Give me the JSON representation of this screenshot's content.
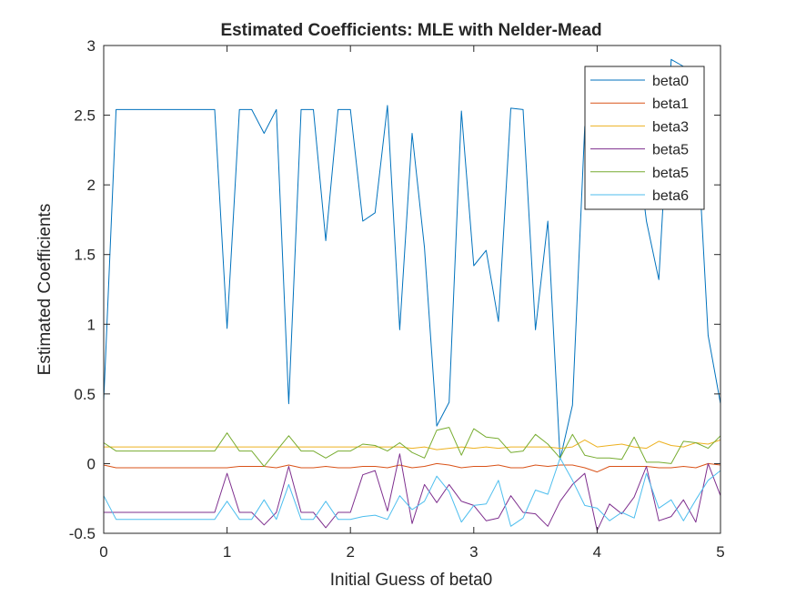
{
  "chart_data": {
    "type": "line",
    "title": "Estimated Coefficients: MLE with Nelder-Mead",
    "xlabel": "Initial Guess of beta0",
    "ylabel": "Estimated Coefficients",
    "xlim": [
      0,
      5
    ],
    "ylim": [
      -0.5,
      3
    ],
    "xticks": [
      0,
      1,
      2,
      3,
      4,
      5
    ],
    "xtick_labels": [
      "0",
      "1",
      "2",
      "3",
      "4",
      "5"
    ],
    "yticks": [
      -0.5,
      0,
      0.5,
      1,
      1.5,
      2,
      2.5,
      3
    ],
    "ytick_labels": [
      "-0.5",
      "0",
      "0.5",
      "1",
      "1.5",
      "2",
      "2.5",
      "3"
    ],
    "grid": false,
    "legend_position": "top-right",
    "x": [
      0,
      0.1,
      0.2,
      0.3,
      0.4,
      0.5,
      0.6,
      0.7,
      0.8,
      0.9,
      1.0,
      1.1,
      1.2,
      1.3,
      1.4,
      1.5,
      1.6,
      1.7,
      1.8,
      1.9,
      2.0,
      2.1,
      2.2,
      2.3,
      2.4,
      2.5,
      2.6,
      2.7,
      2.8,
      2.9,
      3.0,
      3.1,
      3.2,
      3.3,
      3.4,
      3.5,
      3.6,
      3.7,
      3.8,
      3.9,
      4.0,
      4.1,
      4.2,
      4.3,
      4.4,
      4.5,
      4.6,
      4.7,
      4.8,
      4.9,
      5.0
    ],
    "series": [
      {
        "name": "beta0",
        "color": "#0072BD",
        "values": [
          0.45,
          2.54,
          2.54,
          2.54,
          2.54,
          2.54,
          2.54,
          2.54,
          2.54,
          2.54,
          0.97,
          2.54,
          2.54,
          2.37,
          2.54,
          0.43,
          2.54,
          2.54,
          1.6,
          2.54,
          2.54,
          1.74,
          1.8,
          2.57,
          0.96,
          2.37,
          1.55,
          0.27,
          0.44,
          2.53,
          1.42,
          1.53,
          1.02,
          2.55,
          2.54,
          0.96,
          1.74,
          0.03,
          0.42,
          2.42,
          2.45,
          2.45,
          2.45,
          2.45,
          1.74,
          1.32,
          2.9,
          2.85,
          2.55,
          0.92,
          0.43
        ]
      },
      {
        "name": "beta1",
        "color": "#D95319",
        "values": [
          -0.01,
          -0.03,
          -0.03,
          -0.03,
          -0.03,
          -0.03,
          -0.03,
          -0.03,
          -0.03,
          -0.03,
          -0.03,
          -0.02,
          -0.02,
          -0.02,
          -0.03,
          -0.01,
          -0.03,
          -0.03,
          -0.02,
          -0.03,
          -0.03,
          -0.02,
          -0.02,
          -0.03,
          -0.01,
          -0.03,
          -0.02,
          0.0,
          -0.01,
          -0.03,
          -0.02,
          -0.02,
          -0.01,
          -0.03,
          -0.03,
          -0.01,
          -0.02,
          -0.01,
          -0.01,
          -0.03,
          -0.06,
          -0.02,
          -0.02,
          -0.02,
          -0.02,
          -0.03,
          -0.03,
          -0.02,
          -0.03,
          0.0,
          -0.01
        ]
      },
      {
        "name": "beta3",
        "color": "#EDB120",
        "values": [
          0.12,
          0.12,
          0.12,
          0.12,
          0.12,
          0.12,
          0.12,
          0.12,
          0.12,
          0.12,
          0.12,
          0.12,
          0.12,
          0.12,
          0.12,
          0.12,
          0.12,
          0.12,
          0.12,
          0.12,
          0.12,
          0.12,
          0.12,
          0.12,
          0.12,
          0.11,
          0.12,
          0.1,
          0.11,
          0.12,
          0.11,
          0.12,
          0.11,
          0.12,
          0.12,
          0.12,
          0.12,
          0.11,
          0.12,
          0.17,
          0.12,
          0.13,
          0.14,
          0.12,
          0.11,
          0.16,
          0.13,
          0.12,
          0.15,
          0.14,
          0.17
        ]
      },
      {
        "name": "beta5",
        "color": "#7E2F8E",
        "values": [
          -0.35,
          -0.35,
          -0.35,
          -0.35,
          -0.35,
          -0.35,
          -0.35,
          -0.35,
          -0.35,
          -0.35,
          -0.07,
          -0.35,
          -0.35,
          -0.44,
          -0.35,
          -0.02,
          -0.35,
          -0.35,
          -0.46,
          -0.35,
          -0.35,
          -0.08,
          -0.05,
          -0.34,
          0.07,
          -0.43,
          -0.15,
          -0.28,
          -0.15,
          -0.27,
          -0.3,
          -0.41,
          -0.39,
          -0.23,
          -0.35,
          -0.36,
          -0.45,
          -0.27,
          -0.15,
          -0.07,
          -0.48,
          -0.29,
          -0.36,
          -0.24,
          -0.02,
          -0.41,
          -0.38,
          -0.26,
          -0.42,
          0.0,
          -0.23
        ]
      },
      {
        "name": "beta5",
        "color": "#77AC30",
        "values": [
          0.15,
          0.09,
          0.09,
          0.09,
          0.09,
          0.09,
          0.09,
          0.09,
          0.09,
          0.09,
          0.22,
          0.09,
          0.09,
          -0.02,
          0.09,
          0.2,
          0.09,
          0.09,
          0.04,
          0.09,
          0.09,
          0.14,
          0.13,
          0.09,
          0.15,
          0.08,
          0.04,
          0.24,
          0.26,
          0.06,
          0.25,
          0.19,
          0.18,
          0.08,
          0.09,
          0.21,
          0.14,
          0.04,
          0.21,
          0.06,
          0.04,
          0.04,
          0.03,
          0.19,
          0.01,
          0.01,
          0.0,
          0.16,
          0.15,
          0.11,
          0.2
        ]
      },
      {
        "name": "beta6",
        "color": "#4DBEEE",
        "values": [
          -0.23,
          -0.4,
          -0.4,
          -0.4,
          -0.4,
          -0.4,
          -0.4,
          -0.4,
          -0.4,
          -0.4,
          -0.27,
          -0.4,
          -0.4,
          -0.26,
          -0.4,
          -0.15,
          -0.4,
          -0.4,
          -0.27,
          -0.4,
          -0.4,
          -0.38,
          -0.37,
          -0.4,
          -0.23,
          -0.33,
          -0.27,
          -0.09,
          -0.2,
          -0.42,
          -0.3,
          -0.29,
          -0.12,
          -0.45,
          -0.39,
          -0.19,
          -0.22,
          0.04,
          -0.12,
          -0.3,
          -0.32,
          -0.41,
          -0.35,
          -0.39,
          -0.07,
          -0.32,
          -0.26,
          -0.41,
          -0.26,
          -0.12,
          -0.05
        ]
      }
    ]
  }
}
